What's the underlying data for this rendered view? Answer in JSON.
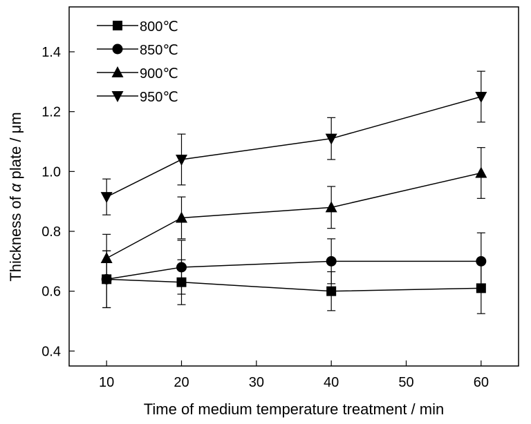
{
  "chart_data": {
    "type": "line",
    "title": "",
    "xlabel": "Time of medium temperature treatment / min",
    "ylabel_parts": [
      "Thickness of ",
      "α",
      " plate / μm"
    ],
    "xlim": [
      5,
      65
    ],
    "ylim": [
      0.35,
      1.55
    ],
    "xticks": [
      10,
      20,
      30,
      40,
      50,
      60
    ],
    "yticks": [
      0.4,
      0.6,
      0.8,
      1.0,
      1.2,
      1.4
    ],
    "xtick_labels": [
      "10",
      "20",
      "30",
      "40",
      "50",
      "60"
    ],
    "ytick_labels": [
      "0.4",
      "0.6",
      "0.8",
      "1.0",
      "1.2",
      "1.4"
    ],
    "legend_position": "top-left",
    "series": [
      {
        "name": "800℃",
        "marker": "square",
        "x": [
          10,
          20,
          40,
          60
        ],
        "y": [
          0.64,
          0.63,
          0.6,
          0.61
        ],
        "err": [
          0.095,
          0.075,
          0.065,
          0.085
        ]
      },
      {
        "name": "850℃",
        "marker": "circle",
        "x": [
          10,
          20,
          40,
          60
        ],
        "y": [
          0.64,
          0.68,
          0.7,
          0.7
        ],
        "err": [
          0.095,
          0.09,
          0.075,
          0.095
        ]
      },
      {
        "name": "900℃",
        "marker": "triangle-up",
        "x": [
          10,
          20,
          40,
          60
        ],
        "y": [
          0.71,
          0.845,
          0.88,
          0.995
        ],
        "err": [
          0.08,
          0.07,
          0.07,
          0.085
        ]
      },
      {
        "name": "950℃",
        "marker": "triangle-down",
        "x": [
          10,
          20,
          40,
          60
        ],
        "y": [
          0.915,
          1.04,
          1.11,
          1.25
        ],
        "err": [
          0.06,
          0.085,
          0.07,
          0.085
        ]
      }
    ]
  }
}
